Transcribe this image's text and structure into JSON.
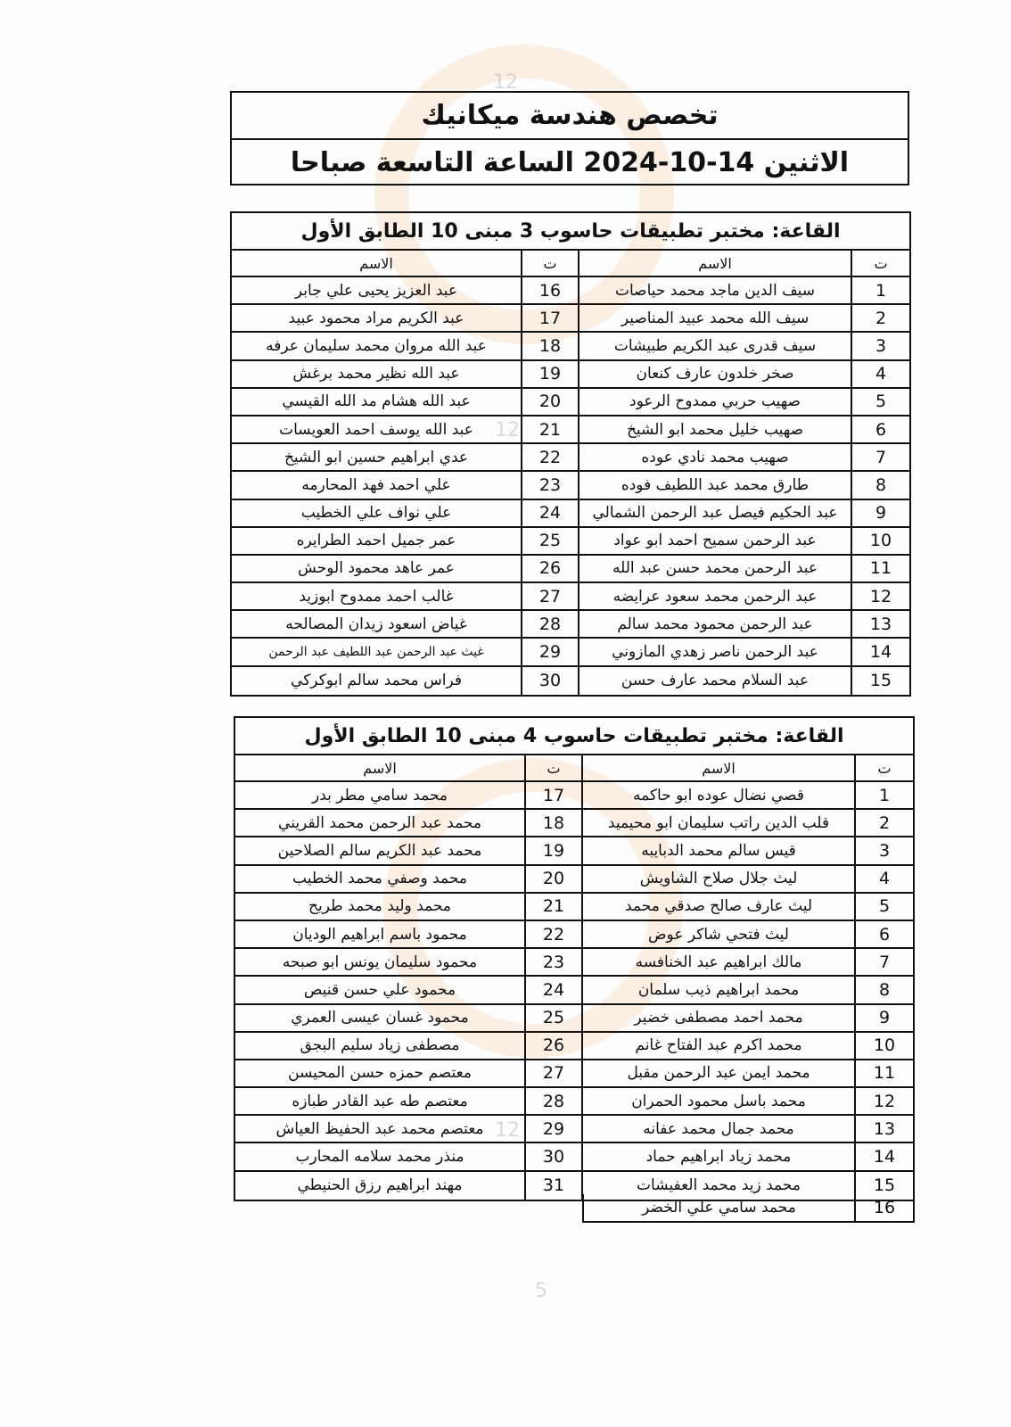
{
  "header": {
    "title": "تخصص هندسة ميكانيك",
    "subtitle": "الاثنين 14-10-2024 الساعة التاسعة صباحا"
  },
  "tables": [
    {
      "title": "القاعة: مختبر تطبيقات حاسوب 3 مبنى 10 الطابق الأول",
      "headers": {
        "num": "ت",
        "name": "الاسم"
      },
      "right": [
        {
          "n": "1",
          "name": "سيف الدين ماجد محمد حياصات"
        },
        {
          "n": "2",
          "name": "سيف الله محمد عبيد المناصير"
        },
        {
          "n": "3",
          "name": "سيف قدرى عبد الكريم طبيشات"
        },
        {
          "n": "4",
          "name": "صخر خلدون عارف كنعان"
        },
        {
          "n": "5",
          "name": "صهيب حربي ممدوح الرعود"
        },
        {
          "n": "6",
          "name": "صهيب خليل محمد ابو الشيخ"
        },
        {
          "n": "7",
          "name": "صهيب محمد نادي عوده"
        },
        {
          "n": "8",
          "name": "طارق محمد عبد اللطيف فوده"
        },
        {
          "n": "9",
          "name": "عبد الحكيم فيصل عبد الرحمن الشمالي"
        },
        {
          "n": "10",
          "name": "عبد الرحمن سميح احمد ابو عواد"
        },
        {
          "n": "11",
          "name": "عبد الرحمن محمد حسن عبد الله"
        },
        {
          "n": "12",
          "name": "عبد الرحمن محمد سعود عرايضه"
        },
        {
          "n": "13",
          "name": "عبد الرحمن محمود محمد سالم"
        },
        {
          "n": "14",
          "name": "عبد الرحمن ناصر زهدي المازوني"
        },
        {
          "n": "15",
          "name": "عبد السلام محمد عارف حسن"
        }
      ],
      "left": [
        {
          "n": "16",
          "name": "عبد العزيز يحيى علي جابر"
        },
        {
          "n": "17",
          "name": "عبد الكريم مراد محمود عبيد"
        },
        {
          "n": "18",
          "name": "عبد الله مروان محمد سليمان عرفه"
        },
        {
          "n": "19",
          "name": "عبد الله نظير محمد برغش"
        },
        {
          "n": "20",
          "name": "عبد الله هشام مد الله القيسي"
        },
        {
          "n": "21",
          "name": "عبد الله يوسف احمد العويسات"
        },
        {
          "n": "22",
          "name": "عدي ابراهيم حسين ابو الشيخ"
        },
        {
          "n": "23",
          "name": "علي احمد فهد المحارمه"
        },
        {
          "n": "24",
          "name": "علي نواف علي الخطيب"
        },
        {
          "n": "25",
          "name": "عمر جميل احمد الطرايره"
        },
        {
          "n": "26",
          "name": "عمر عاهد محمود الوحش"
        },
        {
          "n": "27",
          "name": "غالب احمد ممدوح ابوزيد"
        },
        {
          "n": "28",
          "name": "غياض اسعود زيدان المصالحه"
        },
        {
          "n": "29",
          "name": "غيث عبد الرحمن عبد اللطيف عبد الرحمن"
        },
        {
          "n": "30",
          "name": "فراس محمد سالم ابوكركي"
        }
      ]
    },
    {
      "title": "القاعة: مختبر تطبيقات حاسوب 4 مبنى 10 الطابق الأول",
      "headers": {
        "num": "ت",
        "name": "الاسم"
      },
      "right": [
        {
          "n": "1",
          "name": "قصي نضال عوده ابو حاكمه"
        },
        {
          "n": "2",
          "name": "قلب الدين راتب سليمان ابو محيميد"
        },
        {
          "n": "3",
          "name": "قيس سالم محمد الدبايبه"
        },
        {
          "n": "4",
          "name": "ليث جلال صلاح الشاويش"
        },
        {
          "n": "5",
          "name": "ليث عارف صالح صدقي محمد"
        },
        {
          "n": "6",
          "name": "ليث فتحي شاكر عوض"
        },
        {
          "n": "7",
          "name": "مالك ابراهيم عبد الخنافسه"
        },
        {
          "n": "8",
          "name": "محمد ابراهيم ذيب سلمان"
        },
        {
          "n": "9",
          "name": "محمد احمد مصطفى خضير"
        },
        {
          "n": "10",
          "name": "محمد اكرم عبد الفتاح غانم"
        },
        {
          "n": "11",
          "name": "محمد ايمن عبد الرحمن مقبل"
        },
        {
          "n": "12",
          "name": "محمد باسل محمود الحمران"
        },
        {
          "n": "13",
          "name": "محمد جمال محمد عفانه"
        },
        {
          "n": "14",
          "name": "محمد زياد ابراهيم حماد"
        },
        {
          "n": "15",
          "name": "محمد زيد محمد العفيشات"
        }
      ],
      "left": [
        {
          "n": "17",
          "name": "محمد سامي مطر بدر"
        },
        {
          "n": "18",
          "name": "محمد عبد الرحمن محمد القريني"
        },
        {
          "n": "19",
          "name": "محمد عبد الكريم سالم الصلاحين"
        },
        {
          "n": "20",
          "name": "محمد وصفي محمد الخطيب"
        },
        {
          "n": "21",
          "name": "محمد وليد محمد طريح"
        },
        {
          "n": "22",
          "name": "محمود باسم ابراهيم الوديان"
        },
        {
          "n": "23",
          "name": "محمود سليمان يونس ابو صبحه"
        },
        {
          "n": "24",
          "name": "محمود علي حسن قنيص"
        },
        {
          "n": "25",
          "name": "محمود غسان عيسى العمري"
        },
        {
          "n": "26",
          "name": "مصطفى زياد سليم البجق"
        },
        {
          "n": "27",
          "name": "معتصم حمزه حسن المحيسن"
        },
        {
          "n": "28",
          "name": "معتصم طه عبد القادر طبازه"
        },
        {
          "n": "29",
          "name": "معتصم محمد عبد الحفيظ العياش"
        },
        {
          "n": "30",
          "name": "منذر محمد سلامه المحارب"
        },
        {
          "n": "31",
          "name": "مهند ابراهيم رزق الحنيطي"
        }
      ],
      "extra": {
        "n": "16",
        "name": "محمد سامي علي الخضر"
      }
    }
  ]
}
